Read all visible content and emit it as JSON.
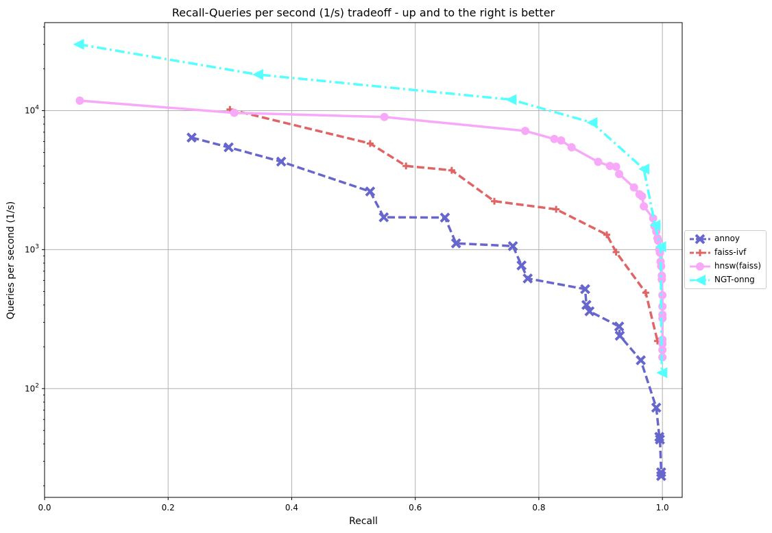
{
  "chart_data": {
    "type": "line",
    "title": "Recall-Queries per second (1/s) tradeoff - up and to the right is better",
    "xlabel": "Recall",
    "ylabel": "Queries per second (1/s)",
    "xlim": [
      0.0,
      1.032
    ],
    "ylim": [
      16.5,
      43000
    ],
    "yscale": "log",
    "x_ticks": [
      "0.0",
      "0.2",
      "0.4",
      "0.6",
      "0.8",
      "1.0"
    ],
    "y_ticks": [
      {
        "value": 100,
        "base": "10",
        "exp": "2"
      },
      {
        "value": 1000,
        "base": "10",
        "exp": "3"
      },
      {
        "value": 10000,
        "base": "10",
        "exp": "4"
      }
    ],
    "grid": true,
    "legend_position": "right-center",
    "series": [
      {
        "name": "annoy",
        "color": "#6666cc",
        "dash": "dashed",
        "marker": "x",
        "points": [
          [
            0.238,
            6400
          ],
          [
            0.298,
            5450
          ],
          [
            0.383,
            4300
          ],
          [
            0.527,
            2620
          ],
          [
            0.549,
            1710
          ],
          [
            0.648,
            1700
          ],
          [
            0.666,
            1110
          ],
          [
            0.758,
            1060
          ],
          [
            0.772,
            770
          ],
          [
            0.782,
            620
          ],
          [
            0.875,
            520
          ],
          [
            0.877,
            400
          ],
          [
            0.882,
            360
          ],
          [
            0.93,
            280
          ],
          [
            0.931,
            240
          ],
          [
            0.965,
            160
          ],
          [
            0.99,
            73
          ],
          [
            0.995,
            45
          ],
          [
            0.996,
            43
          ],
          [
            0.998,
            25
          ],
          [
            0.998,
            23.5
          ]
        ]
      },
      {
        "name": "faiss-ivf",
        "color": "#e06464",
        "dash": "dashed",
        "marker": "plus",
        "points": [
          [
            0.3,
            10200
          ],
          [
            0.527,
            5800
          ],
          [
            0.585,
            4000
          ],
          [
            0.659,
            3720
          ],
          [
            0.728,
            2230
          ],
          [
            0.828,
            1950
          ],
          [
            0.91,
            1280
          ],
          [
            0.925,
            960
          ],
          [
            0.973,
            490
          ],
          [
            0.992,
            220
          ]
        ]
      },
      {
        "name": "hnsw(faiss)",
        "color": "#f8a8f8",
        "dash": "solid",
        "marker": "circle",
        "points": [
          [
            0.057,
            11800
          ],
          [
            0.307,
            9650
          ],
          [
            0.55,
            9000
          ],
          [
            0.778,
            7150
          ],
          [
            0.825,
            6250
          ],
          [
            0.836,
            6100
          ],
          [
            0.853,
            5450
          ],
          [
            0.896,
            4280
          ],
          [
            0.915,
            4000
          ],
          [
            0.925,
            3950
          ],
          [
            0.93,
            3500
          ],
          [
            0.954,
            2800
          ],
          [
            0.963,
            2500
          ],
          [
            0.967,
            2420
          ],
          [
            0.97,
            2050
          ],
          [
            0.985,
            1680
          ],
          [
            0.987,
            1480
          ],
          [
            0.99,
            1350
          ],
          [
            0.992,
            1210
          ],
          [
            0.993,
            1160
          ],
          [
            0.995,
            1000
          ],
          [
            0.996,
            950
          ],
          [
            0.997,
            820
          ],
          [
            0.998,
            760
          ],
          [
            0.999,
            650
          ],
          [
            0.999,
            610
          ],
          [
            1.0,
            470
          ],
          [
            1.0,
            390
          ],
          [
            1.0,
            340
          ],
          [
            1.0,
            320
          ],
          [
            1.0,
            225
          ],
          [
            1.0,
            210
          ],
          [
            1.0,
            190
          ],
          [
            1.0,
            168
          ]
        ]
      },
      {
        "name": "NGT-onng",
        "color": "#55ffff",
        "dash": "dashdot",
        "marker": "triangle-left",
        "points": [
          [
            0.055,
            30000
          ],
          [
            0.345,
            18200
          ],
          [
            0.755,
            12000
          ],
          [
            0.886,
            8200
          ],
          [
            0.97,
            3800
          ],
          [
            0.988,
            1500
          ],
          [
            0.997,
            1050
          ],
          [
            0.999,
            130
          ]
        ]
      }
    ]
  }
}
